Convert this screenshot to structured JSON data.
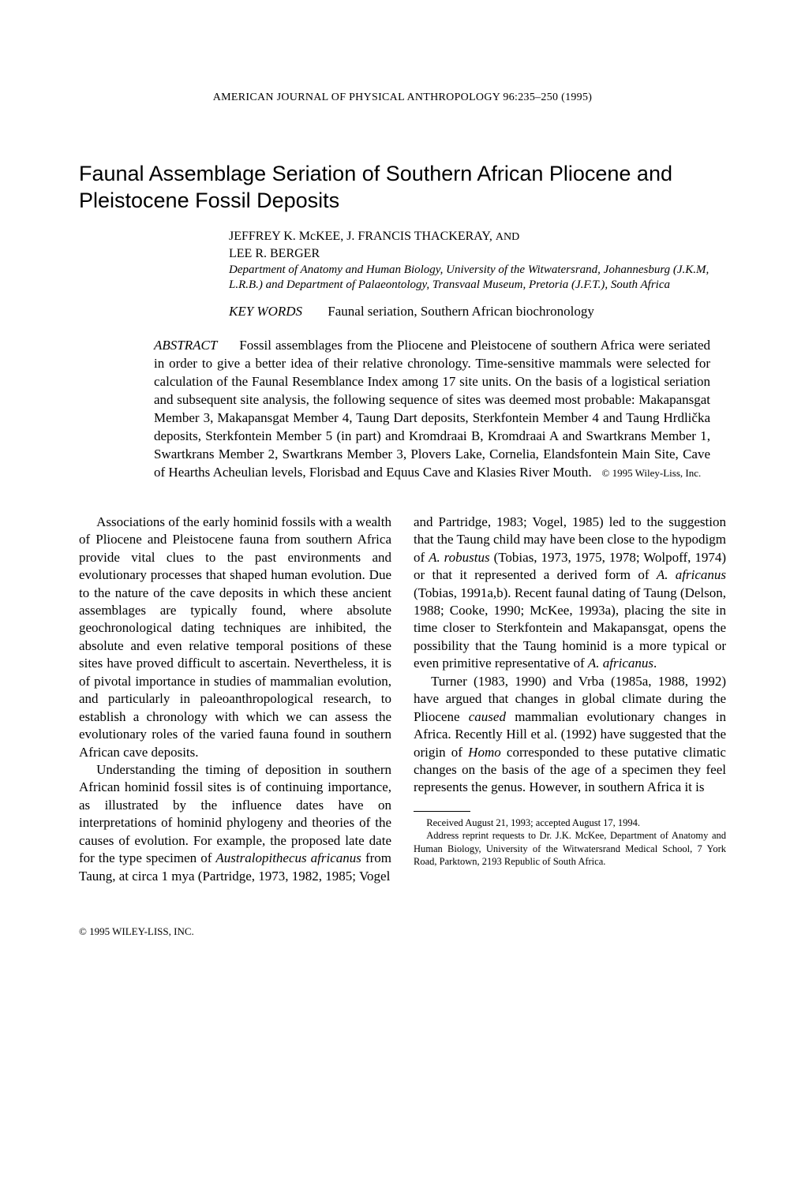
{
  "journal_header": "AMERICAN JOURNAL OF PHYSICAL ANTHROPOLOGY 96:235–250 (1995)",
  "title": "Faunal Assemblage Seriation of Southern African Pliocene and Pleistocene Fossil Deposits",
  "authors_line1": "JEFFREY K. McKEE, J. FRANCIS THACKERAY, ",
  "authors_and": "AND",
  "authors_line2": "LEE R. BERGER",
  "affiliation": "Department of Anatomy and Human Biology, University of the Witwatersrand, Johannesburg (J.K.M, L.R.B.) and Department of Palaeontology, Transvaal Museum, Pretoria (J.F.T.), South Africa",
  "keywords_label": "KEY WORDS",
  "keywords_text": "Faunal seriation, Southern African biochronology",
  "abstract_label": "ABSTRACT",
  "abstract_text": "Fossil assemblages from the Pliocene and Pleistocene of southern Africa were seriated in order to give a better idea of their relative chronology. Time-sensitive mammals were selected for calculation of the Faunal Resemblance Index among 17 site units. On the basis of a logistical seriation and subsequent site analysis, the following sequence of sites was deemed most probable: Makapansgat Member 3, Makapansgat Member 4, Taung Dart deposits, Sterkfontein Member 4 and Taung Hrdlička deposits, Sterkfontein Member 5 (in part) and Kromdraai B, Kromdraai A and Swartkrans Member 1, Swartkrans Member 2, Swartkrans Member 3, Plovers Lake, Cornelia, Elandsfontein Main Site, Cave of Hearths Acheulian levels, Florisbad and Equus Cave and Klasies River Mouth.",
  "abstract_copyright": "© 1995 Wiley-Liss, Inc.",
  "col1_p1": "Associations of the early hominid fossils with a wealth of Pliocene and Pleistocene fauna from southern Africa provide vital clues to the past environments and evolutionary processes that shaped human evolution. Due to the nature of the cave deposits in which these ancient assemblages are typically found, where absolute geochronological dating techniques are inhibited, the absolute and even relative temporal positions of these sites have proved difficult to ascertain. Nevertheless, it is of pivotal importance in studies of mammalian evolution, and particularly in paleoanthropological research, to establish a chronology with which we can assess the evolutionary roles of the varied fauna found in southern African cave deposits.",
  "col1_p2_a": "Understanding the timing of deposition in southern African hominid fossil sites is of continuing importance, as illustrated by the influence dates have on interpretations of hominid phylogeny and theories of the causes of evolution. For example, the proposed late date for the type specimen of ",
  "col1_p2_ital1": "Australopithecus africanus",
  "col1_p2_b": " from Taung, at circa 1 mya (Partridge, 1973, 1982, 1985; Vogel",
  "col2_p1_a": "and Partridge, 1983; Vogel, 1985) led to the suggestion that the Taung child may have been close to the hypodigm of ",
  "col2_p1_ital1": "A. robustus",
  "col2_p1_b": " (Tobias, 1973, 1975, 1978; Wolpoff, 1974) or that it represented a derived form of ",
  "col2_p1_ital2": "A. africanus",
  "col2_p1_c": " (Tobias, 1991a,b). Recent faunal dating of Taung (Delson, 1988; Cooke, 1990; McKee, 1993a), placing the site in time closer to Sterkfontein and Makapansgat, opens the possibility that the Taung hominid is a more typical or even primitive representative of ",
  "col2_p1_ital3": "A. africanus",
  "col2_p1_d": ".",
  "col2_p2_a": "Turner (1983, 1990) and Vrba (1985a, 1988, 1992) have argued that changes in global climate during the Pliocene ",
  "col2_p2_ital1": "caused",
  "col2_p2_b": " mammalian evolutionary changes in Africa. Recently Hill et al. (1992) have suggested that the origin of ",
  "col2_p2_ital2": "Homo",
  "col2_p2_c": " corresponded to these putative climatic changes on the basis of the age of a specimen they feel represents the genus. However, in southern Africa it is",
  "footnote1": "Received August 21, 1993; accepted August 17, 1994.",
  "footnote2": "Address reprint requests to Dr. J.K. McKee, Department of Anatomy and Human Biology, University of the Witwatersrand Medical School, 7 York Road, Parktown, 2193 Republic of South Africa.",
  "bottom_copyright": "© 1995 WILEY-LISS, INC."
}
